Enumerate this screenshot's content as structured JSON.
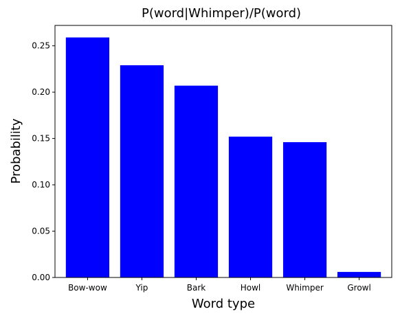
{
  "chart_data": {
    "type": "bar",
    "title": "P(word|Whimper)/P(word)",
    "xlabel": "Word type",
    "ylabel": "Probability",
    "categories": [
      "Bow-wow",
      "Yip",
      "Bark",
      "Howl",
      "Whimper",
      "Growl"
    ],
    "values": [
      0.259,
      0.229,
      0.207,
      0.152,
      0.146,
      0.006
    ],
    "ylim": [
      0,
      0.272
    ],
    "yticks": [
      0.0,
      0.05,
      0.1,
      0.15,
      0.2,
      0.25
    ],
    "ytick_labels": [
      "0.00",
      "0.05",
      "0.10",
      "0.15",
      "0.20",
      "0.25"
    ],
    "bar_color": "#0000ff",
    "grid": false,
    "legend": false
  }
}
